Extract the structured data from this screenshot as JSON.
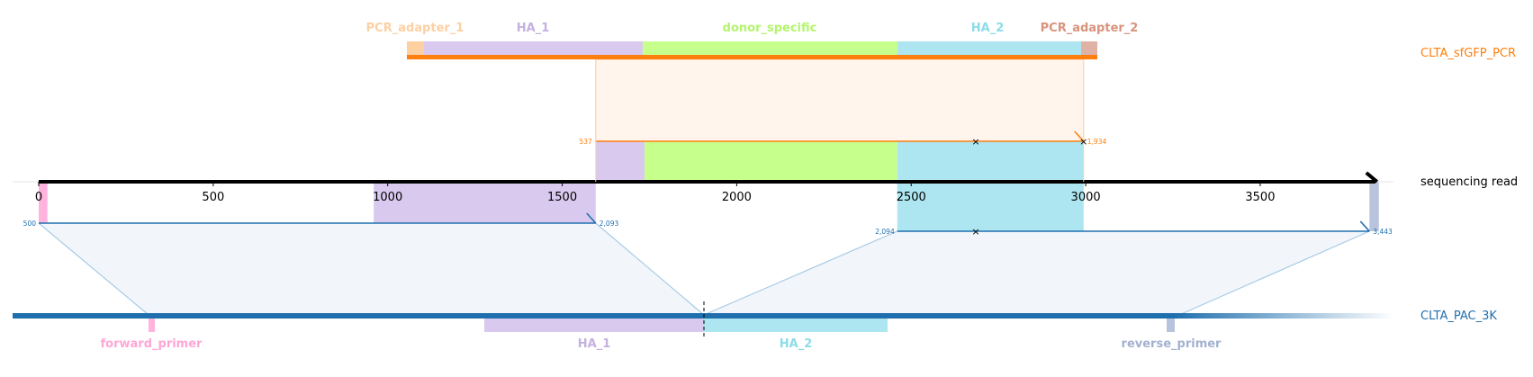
{
  "reference": {
    "name": "sequencing read",
    "length": 3840,
    "ticks": [
      0,
      500,
      1000,
      1500,
      2000,
      2500,
      3000,
      3500
    ]
  },
  "pcr": {
    "name": "CLTA_sfGFP_PCR",
    "color": "#ff7f0e",
    "features": [
      {
        "id": "pcr-adapter-1",
        "label": "PCR_adapter_1",
        "color": "#fdd0a2",
        "label_color": "#fdd0a2"
      },
      {
        "id": "ha-1",
        "label": "HA_1",
        "color": "#d9c9ee",
        "label_color": "#c5b0e0"
      },
      {
        "id": "donor-specific",
        "label": "donor_specific",
        "color": "#c7ff8c",
        "label_color": "#b4f56e"
      },
      {
        "id": "ha-2",
        "label": "HA_2",
        "color": "#ade6f0",
        "label_color": "#8cdce8"
      },
      {
        "id": "pcr-adapter-2",
        "label": "PCR_adapter_2",
        "color": "#e0b2a6",
        "label_color": "#d9937c"
      }
    ],
    "alignment": {
      "ref_start": 1596,
      "ref_end": 2994,
      "start_label": "537",
      "end_label": "1,934",
      "mismatch_positions": [
        2685,
        2994
      ]
    }
  },
  "plasmid": {
    "name": "CLTA_PAC_3K",
    "color": "#1f6fae",
    "features": [
      {
        "id": "forward-primer",
        "label": "forward_primer",
        "color": "#ffb3dd",
        "label_color": "#ffa6d6"
      },
      {
        "id": "ha-1-bottom",
        "label": "HA_1",
        "color": "#d9c9ee",
        "label_color": "#c5b0e0"
      },
      {
        "id": "ha-2-bottom",
        "label": "HA_2",
        "color": "#ade6f0",
        "label_color": "#8cdce8"
      },
      {
        "id": "reverse-primer",
        "label": "reverse_primer",
        "color": "#b8c3dd",
        "label_color": "#a3b1d1"
      }
    ],
    "alignments": [
      {
        "ref_start": 0,
        "ref_end": 1596,
        "start_label": "500",
        "end_label": "2,093",
        "mismatch_positions": []
      },
      {
        "ref_start": 2460,
        "ref_end": 3813,
        "start_label": "2,094",
        "end_label": "3,443",
        "mismatch_positions": [
          2685
        ]
      }
    ]
  },
  "read_features": [
    {
      "id": "forward-primer-read",
      "color": "#ffb3dd",
      "ref_start": 0,
      "ref_end": 25
    },
    {
      "id": "ha-1-read",
      "color": "#d9c9ee",
      "ref_start": 960,
      "ref_end": 1596
    },
    {
      "id": "ha-1-read-upper",
      "color": "#d9c9ee",
      "ref_start": 1596,
      "ref_end": 1736
    },
    {
      "id": "donor-read",
      "color": "#c7ff8c",
      "ref_start": 1736,
      "ref_end": 2460
    },
    {
      "id": "ha-2-read",
      "color": "#ade6f0",
      "ref_start": 2460,
      "ref_end": 2994
    },
    {
      "id": "reverse-primer-read",
      "color": "#b8c3dd",
      "ref_start": 3813,
      "ref_end": 3840
    }
  ]
}
